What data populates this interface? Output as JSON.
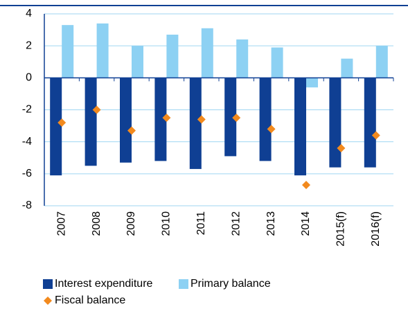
{
  "chart_data": {
    "type": "bar",
    "categories": [
      "2007",
      "2008",
      "2009",
      "2010",
      "2011",
      "2012",
      "2013",
      "2014",
      "2015(f)",
      "2016(f)"
    ],
    "series": [
      {
        "name": "Interest expenditure",
        "color": "#0f3f93",
        "values": [
          -6.1,
          -5.5,
          -5.3,
          -5.2,
          -5.7,
          -4.9,
          -5.2,
          -6.1,
          -5.6,
          -5.6
        ]
      },
      {
        "name": "Primary balance",
        "color": "#8dd1f3",
        "values": [
          3.3,
          3.4,
          2.0,
          2.7,
          3.1,
          2.4,
          1.9,
          -0.6,
          1.2,
          2.0
        ]
      },
      {
        "name": "Fiscal balance",
        "color": "#f28a1e",
        "marker": "diamond",
        "values": [
          -2.8,
          -2.0,
          -3.3,
          -2.5,
          -2.6,
          -2.5,
          -3.2,
          -6.7,
          -4.4,
          -3.6
        ]
      }
    ],
    "ylim": [
      -8,
      4
    ],
    "yticks": [
      -8,
      -6,
      -4,
      -2,
      0,
      2,
      4
    ],
    "grid": true
  }
}
